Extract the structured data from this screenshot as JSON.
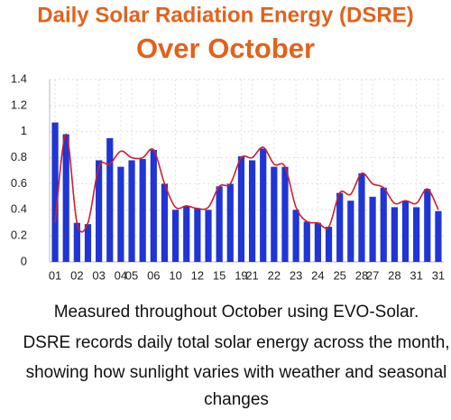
{
  "chart_data": {
    "type": "bar",
    "title": [
      "Daily Solar Radiation Energy (DSRE)",
      "Over October"
    ],
    "categories": [
      "01",
      null,
      "02",
      null,
      "03",
      null,
      "04",
      "05",
      null,
      "06",
      null,
      "10",
      null,
      "12",
      null,
      "15",
      null,
      "19",
      "21",
      null,
      "22",
      null,
      "23",
      null,
      "24",
      null,
      "25",
      null,
      "28",
      "27",
      null,
      "28",
      null,
      "31",
      null,
      "31"
    ],
    "values": [
      1.07,
      0.98,
      0.3,
      0.29,
      0.78,
      0.95,
      0.73,
      0.78,
      0.79,
      0.86,
      0.6,
      0.4,
      0.43,
      0.41,
      0.4,
      0.58,
      0.6,
      0.81,
      0.78,
      0.87,
      0.73,
      0.73,
      0.4,
      0.31,
      0.3,
      0.27,
      0.53,
      0.47,
      0.68,
      0.5,
      0.57,
      0.42,
      0.47,
      0.42,
      0.56,
      0.39
    ],
    "color": "#1f35d6",
    "trend": {
      "color": "#d0202a",
      "values": [
        0.3,
        0.98,
        0.3,
        0.3,
        0.73,
        0.75,
        0.85,
        0.8,
        0.8,
        0.86,
        0.6,
        0.42,
        0.43,
        0.41,
        0.42,
        0.58,
        0.6,
        0.8,
        0.8,
        0.88,
        0.75,
        0.73,
        0.42,
        0.31,
        0.3,
        0.27,
        0.53,
        0.52,
        0.68,
        0.6,
        0.57,
        0.45,
        0.47,
        0.45,
        0.56,
        0.4
      ]
    },
    "ylim": [
      0,
      1.4
    ],
    "yticks": [
      0,
      0.2,
      0.4,
      0.6,
      0.8,
      1,
      1.2,
      1.4
    ],
    "grid": true,
    "caption": [
      "Measured throughout October using EVO-Solar.",
      "DSRE records daily total solar energy across the month,",
      "showing how sunlight varies with weather and seasonal",
      "changes"
    ]
  }
}
